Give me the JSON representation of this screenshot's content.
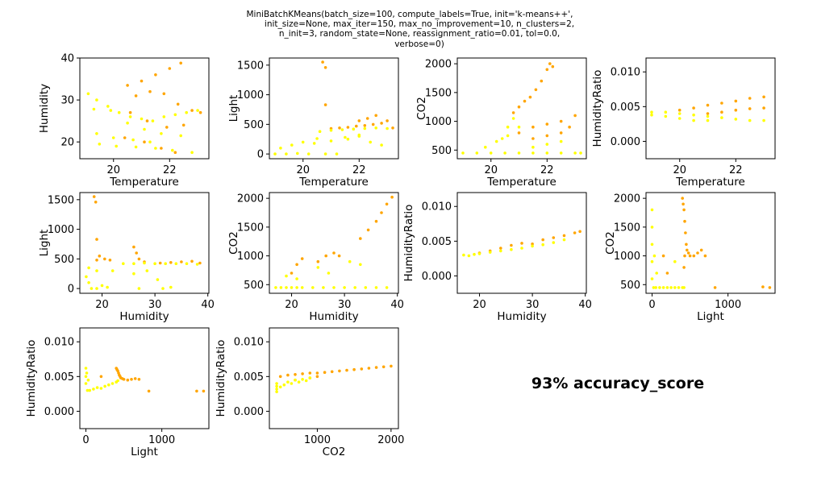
{
  "figure": {
    "title_lines": [
      "MiniBatchKMeans(batch_size=100, compute_labels=True, init='k-means++',",
      "init_size=None, max_iter=150, max_no_improvement=10, n_clusters=2,",
      "n_init=3, random_state=None, reassignment_ratio=0.01, tol=0.0,",
      "verbose=0)"
    ],
    "accuracy_text": "93% accuracy_score"
  },
  "colors": {
    "cluster_a": "#ffa500",
    "cluster_b": "#ffff00"
  },
  "chart_data": [
    {
      "type": "scatter",
      "xlabel": "Temperature",
      "ylabel": "Humidity",
      "xlim": [
        18.8,
        23.4
      ],
      "ylim": [
        16,
        40
      ],
      "xticks": [
        20,
        22
      ],
      "yticks": [
        20,
        30,
        40
      ],
      "series": [
        {
          "color": "orange",
          "x": [
            20.5,
            21.0,
            21.5,
            22.0,
            22.4,
            20.8,
            21.3,
            21.8,
            22.3,
            22.8,
            23.1,
            20.6,
            21.2,
            21.9,
            22.5,
            20.4,
            21.1,
            21.7,
            22.2
          ],
          "y": [
            33.5,
            34.5,
            36.0,
            37.5,
            38.8,
            31.0,
            32.0,
            31.5,
            29.0,
            27.5,
            27.0,
            27.0,
            25.0,
            23.5,
            24.0,
            21.0,
            20.0,
            18.5,
            17.5
          ]
        },
        {
          "color": "yellow",
          "x": [
            19.1,
            19.4,
            19.8,
            20.2,
            20.6,
            21.0,
            21.4,
            21.8,
            22.2,
            22.6,
            23.0,
            19.3,
            19.9,
            20.5,
            21.1,
            21.7,
            22.4,
            19.5,
            20.1,
            20.8,
            21.5,
            22.1,
            22.8,
            19.4,
            20.0,
            20.7,
            21.3
          ],
          "y": [
            31.5,
            30.0,
            28.5,
            27.0,
            26.0,
            25.5,
            25.0,
            26.0,
            26.5,
            27.0,
            27.5,
            27.8,
            27.5,
            24.5,
            23.0,
            22.0,
            21.5,
            19.5,
            19.0,
            18.8,
            18.5,
            18.0,
            17.5,
            22.0,
            21.0,
            20.5,
            20.0
          ]
        }
      ]
    },
    {
      "type": "scatter",
      "xlabel": "Temperature",
      "ylabel": "Light",
      "xlim": [
        18.8,
        23.4
      ],
      "ylim": [
        -80,
        1620
      ],
      "xticks": [
        20,
        22
      ],
      "yticks": [
        0,
        500,
        1000,
        1500
      ],
      "series": [
        {
          "color": "orange",
          "x": [
            20.7,
            20.8,
            20.8,
            21.0,
            21.3,
            21.6,
            21.9,
            22.2,
            22.5,
            22.8,
            23.0,
            23.2,
            22.0,
            22.3,
            22.6
          ],
          "y": [
            1550,
            1460,
            830,
            430,
            440,
            450,
            470,
            480,
            500,
            520,
            560,
            440,
            560,
            600,
            650
          ]
        },
        {
          "color": "yellow",
          "x": [
            19.0,
            19.4,
            19.8,
            20.2,
            20.6,
            21.0,
            21.4,
            21.8,
            22.2,
            22.6,
            23.0,
            19.2,
            19.6,
            20.0,
            20.4,
            20.8,
            21.2,
            21.6,
            22.0,
            22.4,
            22.8,
            20.5,
            21.0,
            21.5,
            22.0
          ],
          "y": [
            0,
            0,
            10,
            0,
            380,
            400,
            410,
            420,
            430,
            440,
            430,
            100,
            150,
            200,
            180,
            0,
            0,
            250,
            300,
            200,
            150,
            260,
            220,
            280,
            320
          ]
        }
      ]
    },
    {
      "type": "scatter",
      "xlabel": "Temperature",
      "ylabel": "CO2",
      "xlim": [
        18.8,
        23.4
      ],
      "ylim": [
        350,
        2100
      ],
      "xticks": [
        20,
        22
      ],
      "yticks": [
        500,
        1000,
        1500,
        2000
      ],
      "series": [
        {
          "color": "orange",
          "x": [
            20.8,
            21.0,
            21.2,
            21.4,
            21.6,
            21.8,
            22.0,
            22.1,
            22.2,
            21.0,
            21.5,
            22.0,
            22.5,
            22.8,
            23.0,
            21.5,
            22.0,
            22.5
          ],
          "y": [
            1150,
            1250,
            1350,
            1420,
            1550,
            1700,
            1900,
            2000,
            1950,
            800,
            900,
            950,
            1000,
            900,
            1100,
            700,
            750,
            800
          ]
        },
        {
          "color": "yellow",
          "x": [
            19.0,
            19.5,
            20.0,
            20.5,
            21.0,
            21.5,
            22.0,
            22.5,
            23.0,
            23.2,
            19.8,
            20.2,
            20.6,
            21.0,
            20.4,
            20.6,
            20.8,
            21.5,
            22.0,
            22.5
          ],
          "y": [
            450,
            450,
            450,
            450,
            450,
            450,
            450,
            450,
            450,
            450,
            550,
            650,
            750,
            900,
            700,
            900,
            1050,
            550,
            600,
            650
          ]
        }
      ]
    },
    {
      "type": "scatter",
      "xlabel": "Temperature",
      "ylabel": "HumidityRatio",
      "xlim": [
        18.8,
        23.4
      ],
      "ylim": [
        -0.0025,
        0.012
      ],
      "xticks": [
        20,
        22
      ],
      "yticks": [
        0.0,
        0.005,
        0.01
      ],
      "ytick_labels": [
        "0.000",
        "0.005",
        "0.010"
      ],
      "series": [
        {
          "color": "orange",
          "x": [
            20.0,
            20.5,
            21.0,
            21.5,
            22.0,
            22.5,
            23.0,
            21.0,
            21.5,
            22.0,
            22.5,
            23.0
          ],
          "y": [
            0.0045,
            0.0048,
            0.0052,
            0.0055,
            0.0058,
            0.0062,
            0.0064,
            0.004,
            0.0042,
            0.0045,
            0.0047,
            0.0048
          ]
        },
        {
          "color": "yellow",
          "x": [
            19.0,
            19.5,
            20.0,
            20.5,
            21.0,
            21.5,
            22.0,
            22.5,
            23.0,
            19.0,
            19.5,
            20.0,
            20.5,
            21.0
          ],
          "y": [
            0.0042,
            0.0042,
            0.004,
            0.0038,
            0.0036,
            0.0034,
            0.0032,
            0.003,
            0.003,
            0.0038,
            0.0036,
            0.0033,
            0.003,
            0.003
          ]
        }
      ]
    },
    {
      "type": "scatter",
      "xlabel": "Humidity",
      "ylabel": "Light",
      "xlim": [
        15.8,
        40.2
      ],
      "ylim": [
        -80,
        1620
      ],
      "xticks": [
        20,
        30,
        40
      ],
      "yticks": [
        0,
        500,
        1000,
        1500
      ],
      "series": [
        {
          "color": "orange",
          "x": [
            18.5,
            18.8,
            19.0,
            19.5,
            20.5,
            21.5,
            26.0,
            26.5,
            27.0,
            28.0,
            31.0,
            33.0,
            35.0,
            37.0,
            38.5,
            19.0
          ],
          "y": [
            1550,
            1460,
            830,
            550,
            500,
            480,
            700,
            600,
            500,
            450,
            430,
            440,
            450,
            460,
            430,
            480
          ]
        },
        {
          "color": "yellow",
          "x": [
            17.0,
            17.5,
            18.0,
            19.0,
            20.0,
            21.0,
            22.0,
            24.0,
            26.0,
            28.0,
            30.0,
            32.0,
            34.0,
            36.0,
            38.0,
            17.5,
            19.0,
            26.0,
            27.0,
            28.5,
            30.5,
            31.5,
            33.0
          ],
          "y": [
            200,
            100,
            0,
            300,
            50,
            20,
            300,
            420,
            420,
            430,
            420,
            420,
            420,
            420,
            410,
            350,
            0,
            250,
            0,
            300,
            150,
            0,
            20
          ]
        }
      ]
    },
    {
      "type": "scatter",
      "xlabel": "Humidity",
      "ylabel": "CO2",
      "xlim": [
        15.8,
        40.2
      ],
      "ylim": [
        350,
        2100
      ],
      "xticks": [
        20,
        30,
        40
      ],
      "yticks": [
        500,
        1000,
        1500,
        2000
      ],
      "series": [
        {
          "color": "orange",
          "x": [
            20.0,
            21.0,
            22.0,
            25.0,
            26.5,
            28.0,
            29.0,
            33.0,
            34.5,
            36.0,
            37.0,
            38.0,
            39.0
          ],
          "y": [
            700,
            850,
            950,
            900,
            1000,
            1050,
            1000,
            1300,
            1450,
            1600,
            1750,
            1900,
            2020
          ]
        },
        {
          "color": "yellow",
          "x": [
            17.0,
            18.0,
            19.0,
            20.0,
            21.0,
            22.0,
            24.0,
            26.0,
            28.0,
            30.0,
            32.0,
            34.0,
            36.0,
            38.0,
            19.0,
            21.0,
            25.0,
            27.0,
            31.0,
            33.0
          ],
          "y": [
            450,
            450,
            450,
            450,
            450,
            450,
            450,
            450,
            450,
            450,
            450,
            450,
            450,
            450,
            650,
            600,
            800,
            700,
            900,
            850
          ]
        }
      ]
    },
    {
      "type": "scatter",
      "xlabel": "Humidity",
      "ylabel": "HumidityRatio",
      "xlim": [
        15.8,
        40.2
      ],
      "ylim": [
        -0.0025,
        0.012
      ],
      "xticks": [
        20,
        30,
        40
      ],
      "yticks": [
        0.0,
        0.005,
        0.01
      ],
      "ytick_labels": [
        "0.000",
        "0.005",
        "0.010"
      ],
      "series": [
        {
          "color": "orange",
          "x": [
            20.0,
            22.0,
            24.0,
            26.0,
            28.0,
            30.0,
            32.0,
            34.0,
            36.0,
            38.0,
            39.0
          ],
          "y": [
            0.0033,
            0.0036,
            0.004,
            0.0044,
            0.0047,
            0.0046,
            0.0052,
            0.0055,
            0.0058,
            0.0062,
            0.0064
          ]
        },
        {
          "color": "yellow",
          "x": [
            17.0,
            18.0,
            19.0,
            20.0,
            22.0,
            24.0,
            26.0,
            28.0,
            30.0,
            32.0,
            34.0,
            36.0
          ],
          "y": [
            0.003,
            0.0029,
            0.0031,
            0.0032,
            0.0034,
            0.0036,
            0.0038,
            0.004,
            0.0043,
            0.0045,
            0.0048,
            0.0052
          ]
        }
      ]
    },
    {
      "type": "scatter",
      "xlabel": "Light",
      "ylabel": "CO2",
      "xlim": [
        -80,
        1620
      ],
      "ylim": [
        350,
        2100
      ],
      "xticks": [
        0,
        1000
      ],
      "yticks": [
        500,
        1000,
        1500,
        2000
      ],
      "series": [
        {
          "color": "orange",
          "x": [
            400,
            410,
            420,
            430,
            440,
            450,
            430,
            420,
            460,
            480,
            500,
            550,
            600,
            650,
            700,
            830,
            1460,
            1550,
            150,
            200
          ],
          "y": [
            2000,
            1900,
            1800,
            1600,
            1400,
            1200,
            1000,
            800,
            1100,
            1050,
            1000,
            1000,
            1050,
            1100,
            1000,
            450,
            460,
            450,
            1000,
            700
          ]
        },
        {
          "color": "yellow",
          "x": [
            0,
            0,
            0,
            0,
            0,
            20,
            50,
            100,
            150,
            200,
            250,
            300,
            350,
            400,
            420,
            30,
            60,
            300
          ],
          "y": [
            1800,
            1500,
            1200,
            900,
            600,
            450,
            450,
            450,
            450,
            450,
            450,
            450,
            450,
            450,
            450,
            1000,
            700,
            900
          ]
        }
      ]
    },
    {
      "type": "scatter",
      "xlabel": "Light",
      "ylabel": "HumidityRatio",
      "xlim": [
        -80,
        1620
      ],
      "ylim": [
        -0.0025,
        0.012
      ],
      "xticks": [
        0,
        1000
      ],
      "yticks": [
        0.0,
        0.005,
        0.01
      ],
      "ytick_labels": [
        "0.000",
        "0.005",
        "0.010"
      ],
      "series": [
        {
          "color": "orange",
          "x": [
            400,
            410,
            420,
            430,
            440,
            450,
            460,
            480,
            500,
            550,
            600,
            650,
            700,
            830,
            1460,
            1550,
            200
          ],
          "y": [
            0.0062,
            0.006,
            0.0058,
            0.0055,
            0.0052,
            0.005,
            0.0048,
            0.0047,
            0.0046,
            0.0045,
            0.0046,
            0.0047,
            0.0046,
            0.0029,
            0.0029,
            0.0029,
            0.005
          ]
        },
        {
          "color": "yellow",
          "x": [
            0,
            0,
            0,
            20,
            50,
            100,
            150,
            200,
            250,
            300,
            350,
            400,
            420,
            10,
            30
          ],
          "y": [
            0.0062,
            0.005,
            0.004,
            0.003,
            0.003,
            0.0032,
            0.0034,
            0.0033,
            0.0036,
            0.0038,
            0.004,
            0.0042,
            0.0044,
            0.0055,
            0.0045
          ]
        }
      ]
    },
    {
      "type": "scatter",
      "xlabel": "CO2",
      "ylabel": "HumidityRatio",
      "xlim": [
        350,
        2100
      ],
      "ylim": [
        -0.0025,
        0.012
      ],
      "xticks": [
        1000,
        2000
      ],
      "yticks": [
        0.0,
        0.005,
        0.01
      ],
      "ytick_labels": [
        "0.000",
        "0.005",
        "0.010"
      ],
      "series": [
        {
          "color": "orange",
          "x": [
            500,
            600,
            700,
            800,
            900,
            1000,
            1100,
            1200,
            1300,
            1400,
            1500,
            1600,
            1700,
            1800,
            1900,
            2000,
            700,
            900,
            1000
          ],
          "y": [
            0.005,
            0.0052,
            0.0053,
            0.0054,
            0.0055,
            0.0055,
            0.0056,
            0.0057,
            0.0058,
            0.0059,
            0.006,
            0.0061,
            0.0062,
            0.0063,
            0.0064,
            0.0065,
            0.0045,
            0.0048,
            0.005
          ]
        },
        {
          "color": "yellow",
          "x": [
            450,
            450,
            450,
            450,
            500,
            550,
            600,
            650,
            700,
            750,
            800,
            850,
            900
          ],
          "y": [
            0.0028,
            0.0032,
            0.0036,
            0.004,
            0.0035,
            0.0038,
            0.0042,
            0.004,
            0.0045,
            0.0042,
            0.0046,
            0.0044,
            0.0048
          ]
        }
      ]
    }
  ]
}
